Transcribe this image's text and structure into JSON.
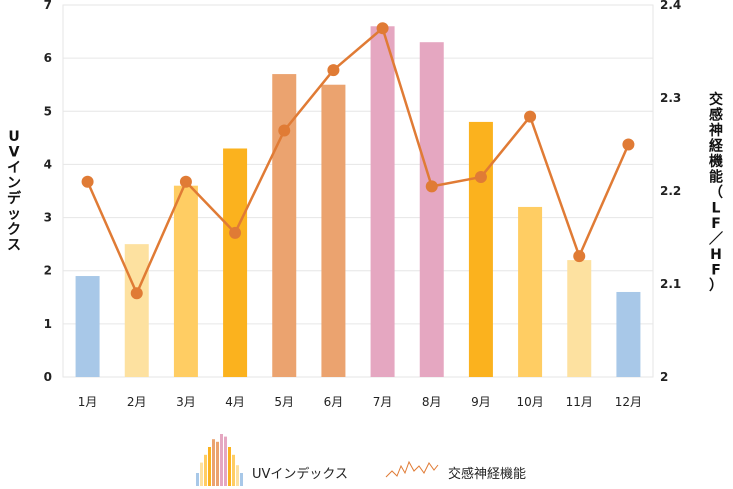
{
  "chart_data": {
    "type": "bar+line",
    "categories": [
      "1月",
      "2月",
      "3月",
      "4月",
      "5月",
      "6月",
      "7月",
      "8月",
      "9月",
      "10月",
      "11月",
      "12月"
    ],
    "series": [
      {
        "name": "UVインデックス",
        "type": "bar",
        "axis": "left",
        "values": [
          1.9,
          2.5,
          3.6,
          4.3,
          5.7,
          5.5,
          6.6,
          6.3,
          4.8,
          3.2,
          2.2,
          1.6
        ],
        "colors": [
          "#a8c8e8",
          "#fde1a0",
          "#ffcd63",
          "#fbb21e",
          "#eba36f",
          "#eba36f",
          "#e5a7c1",
          "#e5a7c1",
          "#fbb21e",
          "#ffcd63",
          "#fde1a0",
          "#a8c8e8"
        ]
      },
      {
        "name": "交感神経機能",
        "type": "line",
        "axis": "right",
        "color": "#e07b35",
        "values": [
          2.21,
          2.09,
          2.21,
          2.155,
          2.265,
          2.33,
          2.375,
          2.205,
          2.215,
          2.28,
          2.13,
          2.25
        ]
      }
    ],
    "y_left": {
      "label": "UVインデックス",
      "range": [
        0,
        7
      ],
      "ticks": [
        "0",
        "1",
        "2",
        "3",
        "4",
        "5",
        "6",
        "7"
      ]
    },
    "y_right": {
      "label": "交感神経機能（LF／HF）",
      "range": [
        2.0,
        2.4
      ],
      "ticks": [
        "2",
        "2.1",
        "2.2",
        "2.3",
        "2.4"
      ]
    },
    "grid": true,
    "legend_position": "bottom-center"
  }
}
